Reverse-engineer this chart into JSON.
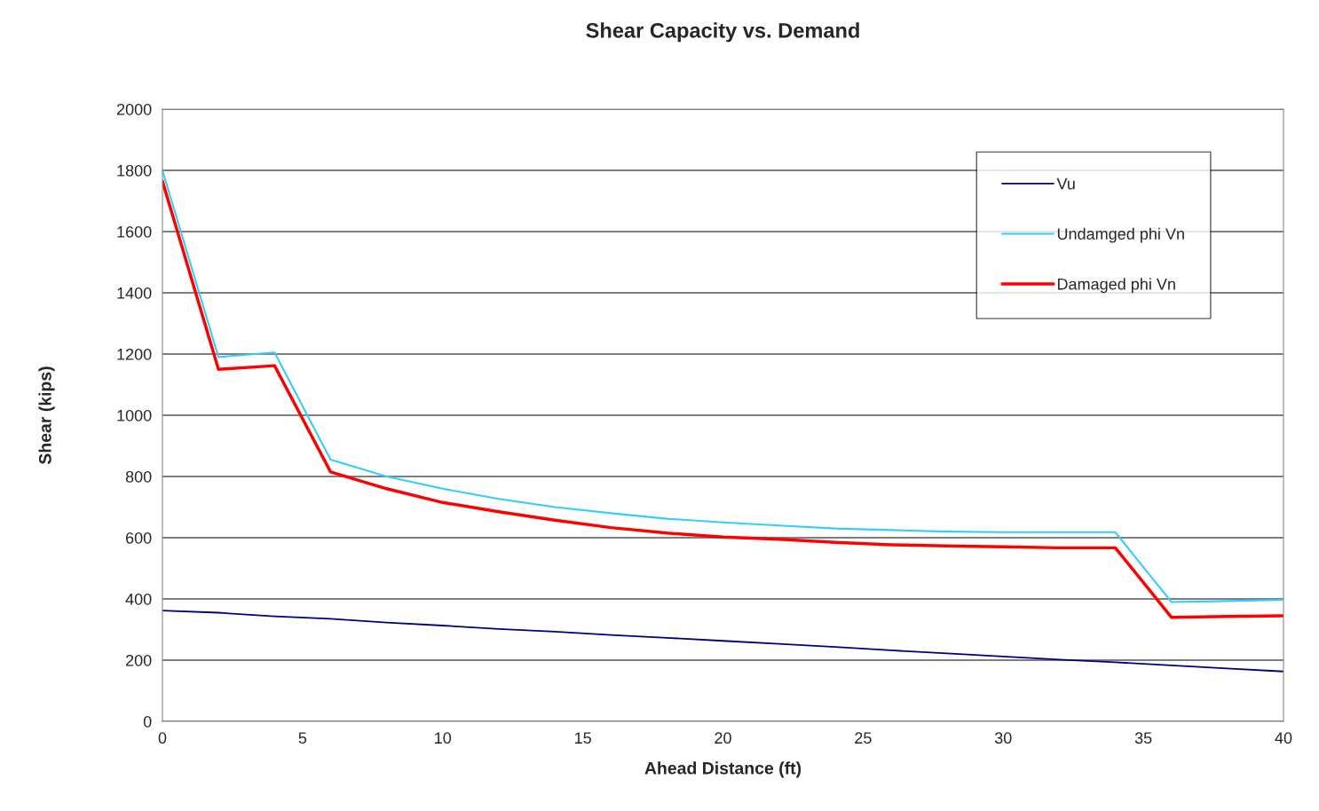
{
  "chart_data": {
    "type": "line",
    "title": "Shear Capacity vs. Demand",
    "xlabel": "Ahead Distance (ft)",
    "ylabel": "Shear (kips)",
    "x": [
      0,
      2,
      4,
      6,
      8,
      10,
      12,
      14,
      16,
      18,
      20,
      22,
      24,
      26,
      28,
      30,
      32,
      34,
      36,
      38,
      40
    ],
    "series": [
      {
        "name": "Vu",
        "color": "#000080",
        "values": [
          362,
          355,
          343,
          335,
          323,
          313,
          302,
          293,
          282,
          273,
          263,
          253,
          243,
          232,
          222,
          212,
          202,
          193,
          183,
          173,
          163
        ]
      },
      {
        "name": "Undamged phi Vn",
        "color": "#33ccff",
        "values": [
          1800,
          1190,
          1205,
          855,
          800,
          760,
          727,
          700,
          680,
          662,
          650,
          640,
          630,
          625,
          620,
          618,
          618,
          618,
          390,
          393,
          397
        ]
      },
      {
        "name": "Damaged phi Vn",
        "color": "#ff0000",
        "values": [
          1765,
          1150,
          1162,
          815,
          760,
          715,
          685,
          657,
          633,
          615,
          602,
          595,
          585,
          577,
          573,
          570,
          567,
          567,
          340,
          343,
          345
        ]
      }
    ],
    "xlim": [
      0,
      40
    ],
    "xticks": [
      0,
      5,
      10,
      15,
      20,
      25,
      30,
      35,
      40
    ],
    "ylim": [
      0,
      2000
    ],
    "yticks": [
      0,
      200,
      400,
      600,
      800,
      1000,
      1200,
      1400,
      1600,
      1800,
      2000
    ],
    "grid": "y",
    "legend": "top right",
    "marker": "none",
    "line_style": "solid"
  }
}
